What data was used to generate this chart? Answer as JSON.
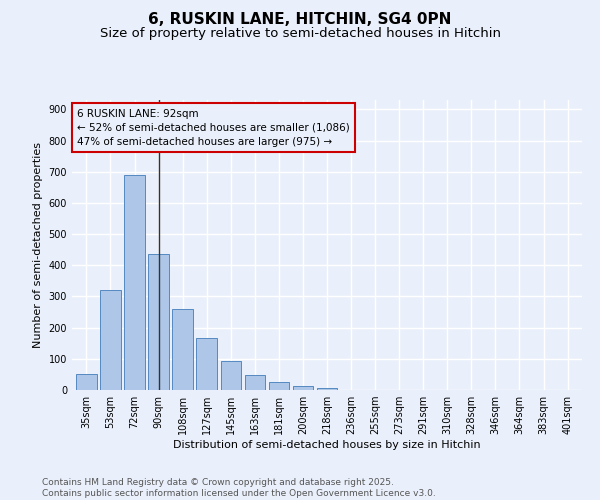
{
  "title": "6, RUSKIN LANE, HITCHIN, SG4 0PN",
  "subtitle": "Size of property relative to semi-detached houses in Hitchin",
  "xlabel": "Distribution of semi-detached houses by size in Hitchin",
  "ylabel": "Number of semi-detached properties",
  "categories": [
    "35sqm",
    "53sqm",
    "72sqm",
    "90sqm",
    "108sqm",
    "127sqm",
    "145sqm",
    "163sqm",
    "181sqm",
    "200sqm",
    "218sqm",
    "236sqm",
    "255sqm",
    "273sqm",
    "291sqm",
    "310sqm",
    "328sqm",
    "346sqm",
    "364sqm",
    "383sqm",
    "401sqm"
  ],
  "values": [
    50,
    322,
    690,
    435,
    260,
    167,
    93,
    47,
    27,
    13,
    8,
    0,
    0,
    0,
    0,
    0,
    0,
    0,
    0,
    0,
    0
  ],
  "bar_color": "#aec6e8",
  "bar_edge_color": "#5589c0",
  "background_color": "#eaf0fb",
  "grid_color": "#ffffff",
  "vline_x": 3,
  "vline_color": "#333333",
  "annotation_text_line1": "6 RUSKIN LANE: 92sqm",
  "annotation_text_line2": "← 52% of semi-detached houses are smaller (1,086)",
  "annotation_text_line3": "47% of semi-detached houses are larger (975) →",
  "box_edge_color": "#cc0000",
  "ylim": [
    0,
    930
  ],
  "yticks": [
    0,
    100,
    200,
    300,
    400,
    500,
    600,
    700,
    800,
    900
  ],
  "footer_line1": "Contains HM Land Registry data © Crown copyright and database right 2025.",
  "footer_line2": "Contains public sector information licensed under the Open Government Licence v3.0.",
  "title_fontsize": 11,
  "subtitle_fontsize": 9.5,
  "axis_label_fontsize": 8,
  "tick_fontsize": 7,
  "annotation_fontsize": 7.5,
  "footer_fontsize": 6.5
}
